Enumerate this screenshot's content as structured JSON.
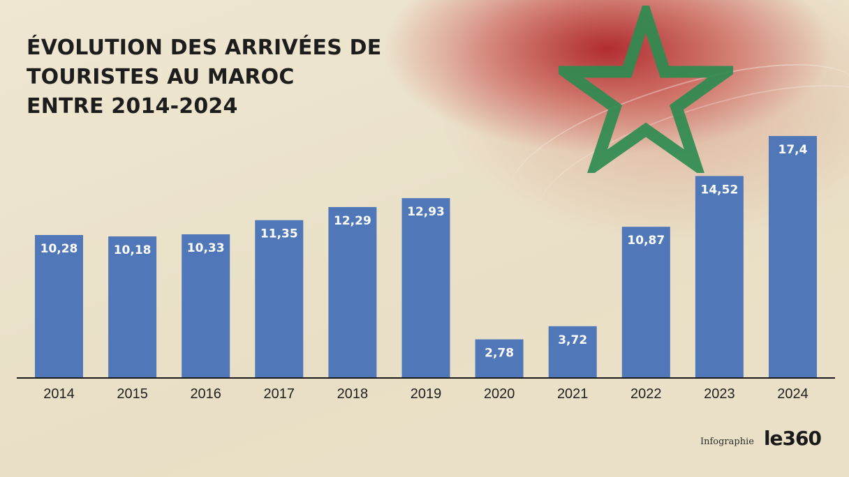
{
  "title_lines": [
    "ÉVOLUTION DES ARRIVÉES DE",
    "TOURISTES AU MAROC",
    "ENTRE 2014-2024"
  ],
  "footer": {
    "credit": "Infographie",
    "logo": "le360"
  },
  "colors": {
    "bar": "#5077b8",
    "label": "#ffffff",
    "axis": "#1a1a1a",
    "star": "#2e8b50",
    "flag_red": "#b3161e"
  },
  "chart_data": {
    "type": "bar",
    "title": "ÉVOLUTION DES ARRIVÉES DE TOURISTES AU MAROC ENTRE 2014-2024",
    "categories": [
      "2014",
      "2015",
      "2016",
      "2017",
      "2018",
      "2019",
      "2020",
      "2021",
      "2022",
      "2023",
      "2024"
    ],
    "values": [
      10.28,
      10.18,
      10.33,
      11.35,
      12.29,
      12.93,
      2.78,
      3.72,
      10.87,
      14.52,
      17.4
    ],
    "data_labels": [
      "10,28",
      "10,18",
      "10,33",
      "11,35",
      "12,29",
      "12,93",
      "2,78",
      "3,72",
      "10,87",
      "14,52",
      "17,4"
    ],
    "xlabel": "",
    "ylabel": "",
    "ylim": [
      0,
      17.4
    ],
    "grid": false,
    "legend": "none"
  }
}
